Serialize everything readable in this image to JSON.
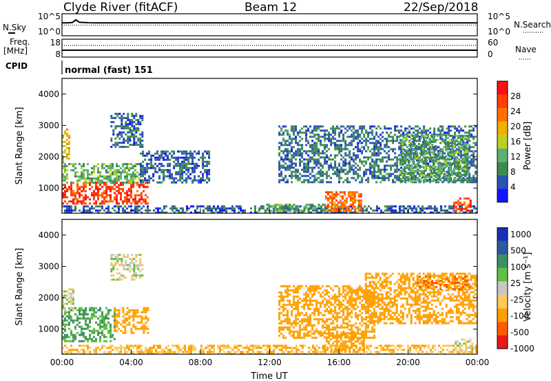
{
  "header": {
    "title": "Clyde River (fitACF)",
    "beam": "Beam 12",
    "date": "22/Sep/2018"
  },
  "labels": {
    "nsky": "N.Sky",
    "nsearch": "N.Search",
    "freq_line1": "Freq.",
    "freq_line2": "[MHz]",
    "nave": "Nave",
    "cpid": "CPID",
    "cpid_value": "normal (fast) 151",
    "ylabel": "Slant Range [km]",
    "xlabel": "Time UT",
    "power_label": "Power [dB]",
    "velocity_label": "Velocity [m s⁻¹]"
  },
  "colors": {
    "power_scale": [
      "#1414ff",
      "#2a52b0",
      "#3c8a50",
      "#5fb070",
      "#b8d020",
      "#f0b000",
      "#ff7000",
      "#ff4000",
      "#ff1010"
    ],
    "velocity_scale": [
      "#e81818",
      "#ff5a00",
      "#ffa000",
      "#ffc858",
      "#c8c8c0",
      "#60c040",
      "#3c9060",
      "#2a5aa0",
      "#1830b8"
    ]
  },
  "chart_data": [
    {
      "type": "line",
      "name": "noise-panel",
      "left_ticks": [
        "10^5",
        "10^0"
      ],
      "right_ticks": [
        "10^5",
        "10^0"
      ],
      "series": [
        {
          "name": "N.Sky",
          "x": [
            0.0,
            0.3,
            0.6,
            0.8,
            1.0,
            1.5,
            2,
            4,
            6,
            8,
            10,
            12,
            14,
            16,
            18,
            20,
            22,
            24
          ],
          "y": [
            1000.0,
            1000.0,
            1200.0,
            6000.0,
            1400.0,
            1100.0,
            1000.0,
            1000.0,
            1000.0,
            1000.0,
            1000.0,
            1000.0,
            1000.0,
            1000.0,
            1000.0,
            1000.0,
            1000.0,
            1000.0
          ]
        }
      ]
    },
    {
      "type": "line",
      "name": "frequency-nave-panel",
      "left_ticks": [
        "18",
        "8"
      ],
      "right_ticks": [
        "60",
        "0"
      ],
      "series": [
        {
          "name": "Freq.",
          "x": [
            0,
            24
          ],
          "y": [
            11,
            11
          ]
        },
        {
          "name": "Nave",
          "x": [
            0,
            24
          ],
          "y": [
            25,
            25
          ]
        }
      ]
    },
    {
      "type": "heatmap",
      "name": "power-panel",
      "xlim": [
        0,
        24
      ],
      "ylim": [
        200,
        4500
      ],
      "x_ticks": [
        "00:00",
        "04:00",
        "08:00",
        "12:00",
        "16:00",
        "20:00",
        "00:00"
      ],
      "y_ticks": [
        1000,
        2000,
        3000,
        4000
      ],
      "colorbar": {
        "label": "Power [dB]",
        "min": 0,
        "max": 32,
        "ticks": [
          4,
          8,
          12,
          16,
          20,
          24,
          28
        ]
      },
      "regions": [
        {
          "t0": 0.0,
          "t1": 5.0,
          "r0": 500,
          "r1": 1200,
          "value": 27
        },
        {
          "t0": 0.0,
          "t1": 4.5,
          "r0": 1200,
          "r1": 1800,
          "value": 12
        },
        {
          "t0": 0.0,
          "t1": 0.4,
          "r0": 1800,
          "r1": 2900,
          "value": 18
        },
        {
          "t0": 2.8,
          "t1": 4.6,
          "r0": 2300,
          "r1": 3400,
          "value": 6
        },
        {
          "t0": 4.5,
          "t1": 8.5,
          "r0": 1200,
          "r1": 2200,
          "value": 6
        },
        {
          "t0": 0.0,
          "t1": 24,
          "r0": 200,
          "r1": 450,
          "value": 6
        },
        {
          "t0": 11.8,
          "t1": 16.2,
          "r0": 300,
          "r1": 500,
          "value": 12
        },
        {
          "t0": 15.2,
          "t1": 17.3,
          "r0": 300,
          "r1": 900,
          "value": 24
        },
        {
          "t0": 12.5,
          "t1": 24,
          "r0": 1200,
          "r1": 3000,
          "value": 7
        },
        {
          "t0": 19.5,
          "t1": 23.5,
          "r0": 1200,
          "r1": 2700,
          "value": 11
        },
        {
          "t0": 22.6,
          "t1": 23.6,
          "r0": 300,
          "r1": 700,
          "value": 26
        }
      ]
    },
    {
      "type": "heatmap",
      "name": "velocity-panel",
      "xlim": [
        0,
        24
      ],
      "ylim": [
        200,
        4500
      ],
      "x_ticks": [
        "00:00",
        "04:00",
        "08:00",
        "12:00",
        "16:00",
        "20:00",
        "00:00"
      ],
      "y_ticks": [
        1000,
        2000,
        3000,
        4000
      ],
      "colorbar": {
        "label": "Velocity [m s⁻¹]",
        "ticks": [
          "1000",
          "500",
          "100",
          "25",
          "-25",
          "-100",
          "-500",
          "-1000"
        ]
      },
      "regions": [
        {
          "t0": 0.0,
          "t1": 3.0,
          "r0": 600,
          "r1": 1700,
          "value": 100
        },
        {
          "t0": 0.0,
          "t1": 0.6,
          "r0": 1600,
          "r1": 2300,
          "value": 0
        },
        {
          "t0": 3.0,
          "t1": 5.0,
          "r0": 900,
          "r1": 1700,
          "value": -300
        },
        {
          "t0": 2.8,
          "t1": 4.6,
          "r0": 2600,
          "r1": 3400,
          "value": 0
        },
        {
          "t0": 0.0,
          "t1": 24,
          "r0": 200,
          "r1": 500,
          "value": -100
        },
        {
          "t0": 12.5,
          "t1": 18.0,
          "r0": 700,
          "r1": 2400,
          "value": -400
        },
        {
          "t0": 15.0,
          "t1": 17.5,
          "r0": 300,
          "r1": 900,
          "value": -300
        },
        {
          "t0": 17.5,
          "t1": 24,
          "r0": 1200,
          "r1": 2800,
          "value": -300
        },
        {
          "t0": 20.5,
          "t1": 23.5,
          "r0": 2300,
          "r1": 2700,
          "value": -500
        },
        {
          "t0": 22.7,
          "t1": 23.7,
          "r0": 300,
          "r1": 700,
          "value": 0
        }
      ]
    }
  ]
}
